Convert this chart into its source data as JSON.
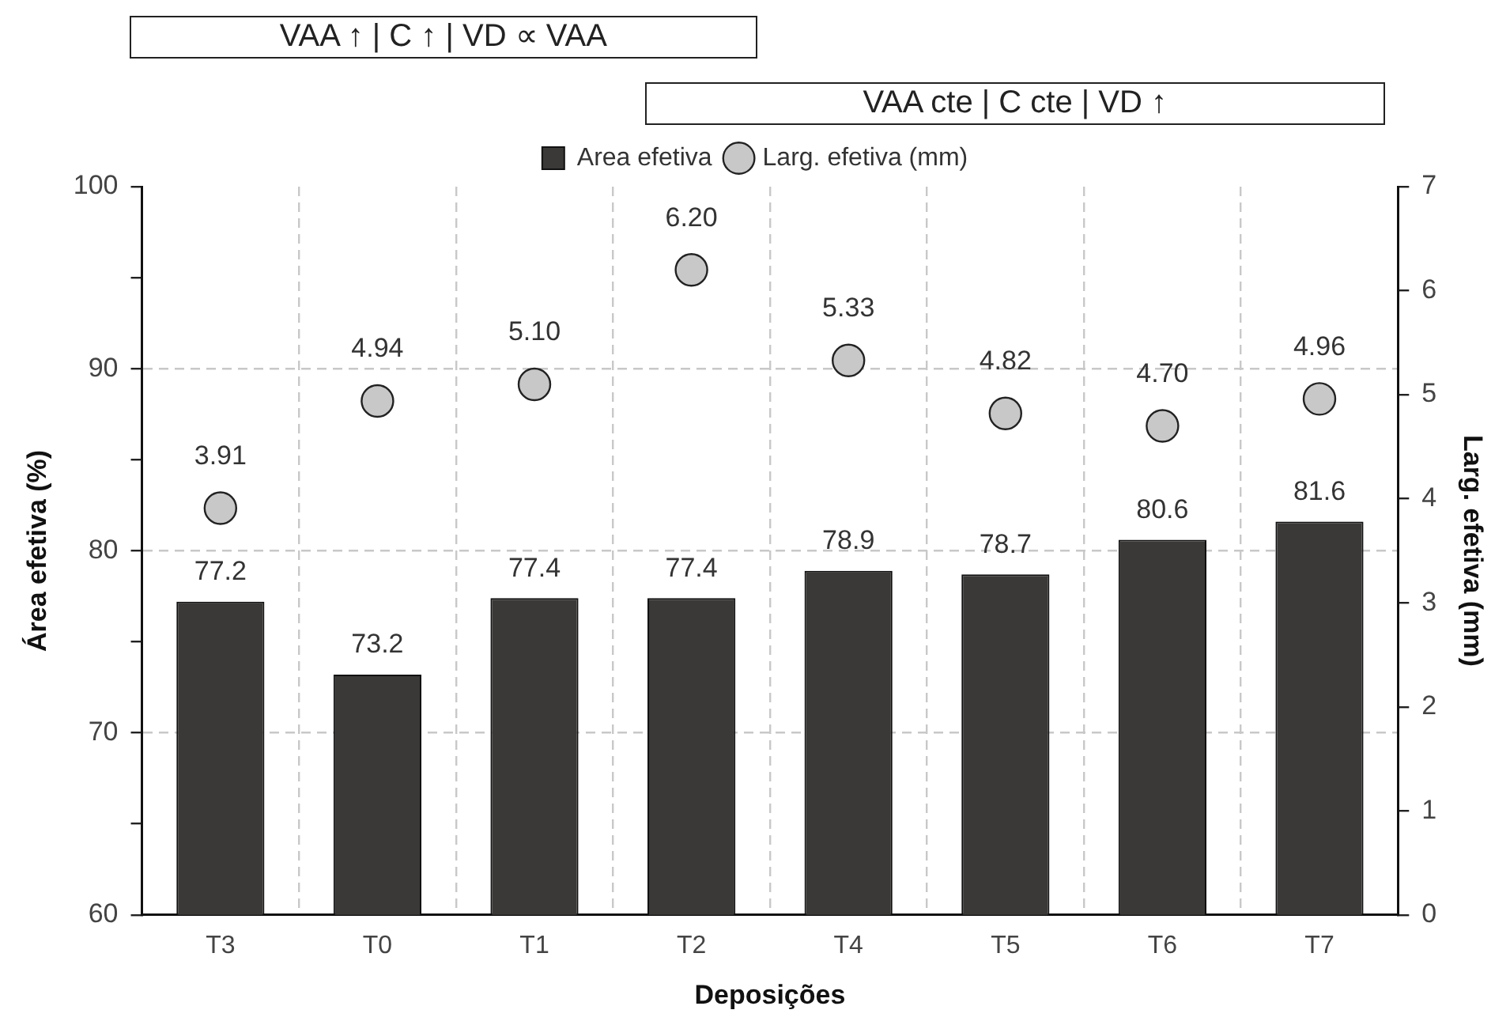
{
  "chart_data": {
    "type": "bar",
    "categories": [
      "T3",
      "T0",
      "T1",
      "T2",
      "T4",
      "T5",
      "T6",
      "T7"
    ],
    "series": [
      {
        "name": "Area efetiva",
        "color": "#3a3937",
        "values": [
          77.2,
          73.2,
          77.4,
          77.4,
          78.9,
          78.7,
          80.6,
          81.6
        ]
      },
      {
        "name": "Larg. efetiva (mm)",
        "type": "scatter",
        "axis": "y2",
        "color": "#c8c8c8",
        "x": [
          "T3",
          "T0",
          "T1",
          "T2",
          "T4",
          "T5",
          "T6",
          "T7"
        ],
        "values": [
          3.91,
          4.94,
          5.1,
          6.2,
          5.33,
          4.82,
          4.7,
          4.96
        ],
        "value_labels": [
          "3.91",
          "4.94",
          "5.10",
          "6.20",
          "5.33",
          "4.82",
          "4.70",
          "4.96"
        ]
      }
    ],
    "xlabel": "Deposições",
    "ylabel": "Área efetiva (%)",
    "y2label": "Larg. efetiva (mm)",
    "ylim": [
      60,
      100
    ],
    "yticks": [
      60,
      {
        "value": 65,
        "label": null
      },
      70,
      {
        "value": 75,
        "label": null
      },
      80,
      {
        "value": 85,
        "label": null
      },
      90,
      {
        "value": 95,
        "label": null
      },
      100
    ],
    "y2lim": [
      0,
      7
    ],
    "y2ticks": [
      0,
      1,
      2,
      3,
      4,
      5,
      6,
      7
    ],
    "annotations": [
      "VAA ↑ | C ↑ | VD ∝ VAA",
      "VAA cte | C cte | VD ↑"
    ],
    "data_labels": true,
    "grid": true,
    "legend": "top",
    "marker": "circle"
  }
}
